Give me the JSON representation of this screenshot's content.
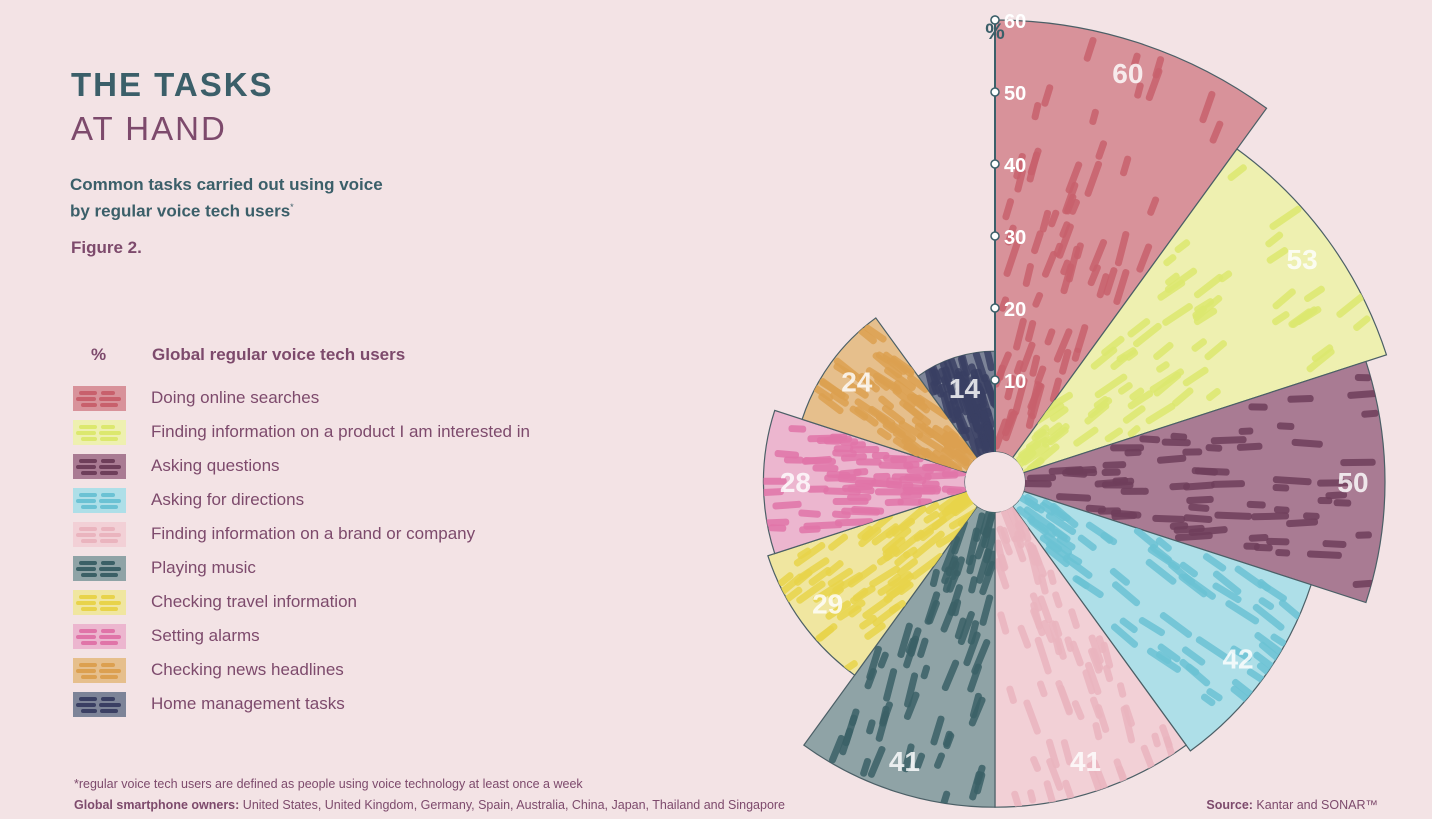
{
  "header": {
    "title_line1": "THE TASKS",
    "title_line2": "AT HAND",
    "subtitle": "Common tasks carried out using voice by regular voice tech users",
    "subtitle_mark": "*",
    "figure_label": "Figure 2."
  },
  "legend": {
    "percent_header": "%",
    "label_header": "Global regular voice tech users"
  },
  "footer": {
    "footnote": "*regular voice tech users are defined as people using voice technology at least once a week",
    "owners_label": "Global smartphone owners:",
    "owners_text": " United States, United Kingdom, Germany, Spain, Australia, China, Japan, Thailand and Singapore",
    "source_label": "Source:",
    "source_text": " Kantar and SONAR™"
  },
  "chart_data": {
    "type": "polar-area",
    "axis_unit_label": "%",
    "radial_ticks": [
      10,
      20,
      30,
      40,
      50,
      60
    ],
    "rmax": 60,
    "series_name": "Global regular voice tech users",
    "categories": [
      {
        "label": "Doing online searches",
        "value": 60,
        "color": "#d8929a",
        "stroke": "#c8606c"
      },
      {
        "label": "Finding information on a product I am interested in",
        "value": 53,
        "color": "#eef0b0",
        "stroke": "#dce86e"
      },
      {
        "label": "Asking questions",
        "value": 50,
        "color": "#a97b93",
        "stroke": "#6e3e5a"
      },
      {
        "label": "Asking for directions",
        "value": 42,
        "color": "#aedfe8",
        "stroke": "#6bc2d4"
      },
      {
        "label": "Finding information on a brand or company",
        "value": 41,
        "color": "#f2d0d6",
        "stroke": "#eab4be"
      },
      {
        "label": "Playing music",
        "value": 41,
        "color": "#8fa3a6",
        "stroke": "#3b6066"
      },
      {
        "label": "Checking travel information",
        "value": 29,
        "color": "#f0e6a0",
        "stroke": "#e8d34a"
      },
      {
        "label": "Setting alarms",
        "value": 28,
        "color": "#ecb6cf",
        "stroke": "#e074a8"
      },
      {
        "label": "Checking news headlines",
        "value": 24,
        "color": "#e6bf8c",
        "stroke": "#dca050"
      },
      {
        "label": "Home management tasks",
        "value": 14,
        "color": "#7d8498",
        "stroke": "#3a3f63"
      }
    ]
  }
}
